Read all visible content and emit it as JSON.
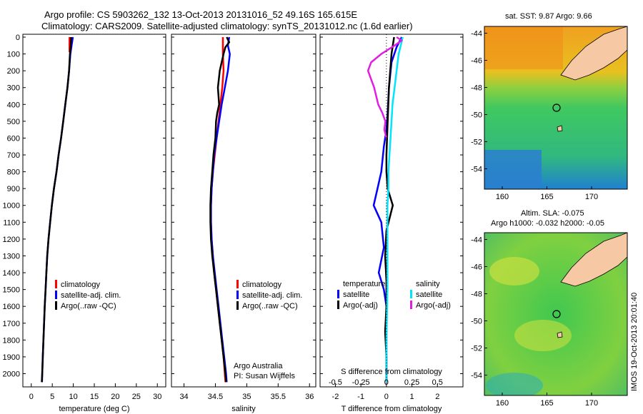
{
  "header": {
    "line1": "Argo profile: CS 5903262_132 13-Oct-2013 20131016_52 49.16S 165.615E",
    "line2": "Climatology: CARS2009. Satellite-adjusted climatology: synTS_20131012.nc (1.6d earlier)"
  },
  "credit": {
    "line1": "Argo Australia",
    "line2": "PI: Susan Wijffels"
  },
  "watermark": "IMOS 19-Oct-2013 20:01:40",
  "colors": {
    "climatology": "#ff0000",
    "satellite": "#0000ff",
    "argo": "#000000",
    "salinity_satellite": "#00e5ff",
    "salinity_argo": "#e020e0",
    "land": "#f6c9a4"
  },
  "chart_data": [
    {
      "type": "line",
      "name": "temperature-profile",
      "xlabel": "temperature (deg C)",
      "ylabel": "",
      "xlim": [
        -2,
        32
      ],
      "ylim": [
        2070,
        0
      ],
      "xticks": [
        0,
        5,
        10,
        15,
        20,
        25,
        30
      ],
      "yticks": [
        0,
        100,
        200,
        300,
        400,
        500,
        600,
        700,
        800,
        900,
        1000,
        1100,
        1200,
        1300,
        1400,
        1500,
        1600,
        1700,
        1800,
        1900,
        2000
      ],
      "legend": [
        "climatology",
        "satellite-adj. clim.",
        "Argo(..raw -QC)"
      ],
      "legend_position": "lower-right",
      "series": [
        {
          "name": "climatology",
          "color": "#ff0000",
          "points": [
            [
              9.1,
              0
            ],
            [
              9.1,
              60
            ],
            [
              9.1,
              90
            ]
          ]
        },
        {
          "name": "satellite-adj. clim.",
          "color": "#0000ff",
          "points": [
            [
              9.9,
              0
            ],
            [
              9.6,
              50
            ],
            [
              9.3,
              100
            ],
            [
              9.0,
              200
            ],
            [
              8.6,
              300
            ],
            [
              8.1,
              400
            ],
            [
              7.6,
              500
            ],
            [
              7.1,
              600
            ],
            [
              6.5,
              700
            ],
            [
              6.0,
              800
            ],
            [
              5.4,
              900
            ],
            [
              4.9,
              1000
            ],
            [
              4.5,
              1100
            ],
            [
              4.1,
              1200
            ],
            [
              3.8,
              1300
            ],
            [
              3.6,
              1400
            ],
            [
              3.4,
              1500
            ],
            [
              3.2,
              1600
            ],
            [
              3.05,
              1700
            ],
            [
              2.9,
              1800
            ],
            [
              2.75,
              1900
            ],
            [
              2.6,
              2000
            ],
            [
              2.55,
              2050
            ]
          ]
        },
        {
          "name": "Argo(..raw -QC)",
          "color": "#000000",
          "points": [
            [
              9.5,
              0
            ],
            [
              9.4,
              50
            ],
            [
              9.2,
              100
            ],
            [
              9.0,
              200
            ],
            [
              8.6,
              300
            ],
            [
              8.1,
              400
            ],
            [
              7.6,
              500
            ],
            [
              7.1,
              600
            ],
            [
              6.5,
              700
            ],
            [
              6.0,
              800
            ],
            [
              5.4,
              900
            ],
            [
              4.9,
              1000
            ],
            [
              4.5,
              1100
            ],
            [
              4.1,
              1200
            ],
            [
              3.8,
              1300
            ],
            [
              3.6,
              1400
            ],
            [
              3.4,
              1500
            ],
            [
              3.2,
              1600
            ],
            [
              3.05,
              1700
            ],
            [
              2.9,
              1800
            ],
            [
              2.75,
              1900
            ],
            [
              2.6,
              2000
            ],
            [
              2.5,
              2050
            ]
          ]
        }
      ]
    },
    {
      "type": "line",
      "name": "salinity-profile",
      "xlabel": "salinity",
      "ylabel": "",
      "xlim": [
        33.8,
        36.1
      ],
      "ylim": [
        2070,
        0
      ],
      "xticks": [
        34,
        34.5,
        35,
        35.5,
        36
      ],
      "legend": [
        "climatology",
        "satellite-adj. clim.",
        "Argo(..raw -QC)"
      ],
      "legend_position": "lower-right",
      "series": [
        {
          "name": "climatology",
          "color": "#ff0000",
          "points": [
            [
              34.62,
              0
            ],
            [
              34.62,
              100
            ],
            [
              34.63,
              200
            ],
            [
              34.61,
              300
            ],
            [
              34.58,
              400
            ],
            [
              34.55,
              500
            ],
            [
              34.52,
              600
            ],
            [
              34.49,
              700
            ],
            [
              34.46,
              800
            ],
            [
              34.44,
              900
            ],
            [
              34.43,
              1000
            ],
            [
              34.43,
              1100
            ],
            [
              34.44,
              1200
            ],
            [
              34.46,
              1300
            ],
            [
              34.48,
              1400
            ],
            [
              34.51,
              1500
            ],
            [
              34.54,
              1600
            ],
            [
              34.57,
              1700
            ],
            [
              34.6,
              1800
            ],
            [
              34.63,
              1900
            ],
            [
              34.65,
              2000
            ],
            [
              34.66,
              2050
            ]
          ]
        },
        {
          "name": "satellite-adj. clim.",
          "color": "#0000ff",
          "points": [
            [
              34.72,
              0
            ],
            [
              34.7,
              50
            ],
            [
              34.73,
              100
            ],
            [
              34.7,
              200
            ],
            [
              34.65,
              300
            ],
            [
              34.6,
              400
            ],
            [
              34.56,
              500
            ],
            [
              34.52,
              600
            ],
            [
              34.48,
              700
            ],
            [
              34.46,
              800
            ],
            [
              34.44,
              900
            ],
            [
              34.43,
              1000
            ],
            [
              34.43,
              1100
            ],
            [
              34.44,
              1200
            ],
            [
              34.46,
              1300
            ],
            [
              34.49,
              1400
            ],
            [
              34.52,
              1500
            ],
            [
              34.55,
              1600
            ],
            [
              34.58,
              1700
            ],
            [
              34.61,
              1800
            ],
            [
              34.64,
              1900
            ],
            [
              34.67,
              2000
            ],
            [
              34.68,
              2050
            ]
          ]
        },
        {
          "name": "Argo(..raw -QC)",
          "color": "#000000",
          "points": [
            [
              34.68,
              0
            ],
            [
              34.72,
              30
            ],
            [
              34.66,
              60
            ],
            [
              34.63,
              100
            ],
            [
              34.57,
              200
            ],
            [
              34.54,
              300
            ],
            [
              34.56,
              400
            ],
            [
              34.53,
              450
            ],
            [
              34.51,
              500
            ],
            [
              34.5,
              600
            ],
            [
              34.47,
              700
            ],
            [
              34.45,
              800
            ],
            [
              34.43,
              900
            ],
            [
              34.42,
              1000
            ],
            [
              34.42,
              1100
            ],
            [
              34.43,
              1200
            ],
            [
              34.45,
              1300
            ],
            [
              34.48,
              1400
            ],
            [
              34.51,
              1500
            ],
            [
              34.54,
              1600
            ],
            [
              34.57,
              1700
            ],
            [
              34.6,
              1800
            ],
            [
              34.63,
              1900
            ],
            [
              34.66,
              2000
            ],
            [
              34.67,
              2050
            ]
          ]
        }
      ]
    },
    {
      "type": "line",
      "name": "difference-profile",
      "xlabel": "T difference from climatology",
      "xlabel_top": "S difference from climatology",
      "xlim": [
        -2.6,
        3.0
      ],
      "ylim": [
        2070,
        0
      ],
      "xticks": [
        -2,
        -1,
        0,
        1,
        2
      ],
      "xticks_s": [
        {
          "value": -0.5,
          "label": "-0.5"
        },
        {
          "value": -0.25,
          "label": "-0.25"
        },
        {
          "value": 0,
          "label": "0"
        },
        {
          "value": 0.25,
          "label": "0.25"
        },
        {
          "value": 0.5,
          "label": "0.5"
        }
      ],
      "s_scale": 4,
      "legend_left_title": "temperature",
      "legend_right_title": "salinity",
      "legend_left": [
        "satellite",
        "Argo(-adj)"
      ],
      "legend_right": [
        "satellite",
        "Argo(-adj)"
      ],
      "series": [
        {
          "name": "temperature satellite",
          "color": "#0000ff",
          "points": [
            [
              0.6,
              0
            ],
            [
              0.4,
              60
            ],
            [
              0.2,
              150
            ],
            [
              0.1,
              300
            ],
            [
              0.05,
              450
            ],
            [
              0.0,
              550
            ],
            [
              -0.1,
              650
            ],
            [
              -0.2,
              800
            ],
            [
              -0.35,
              900
            ],
            [
              -0.5,
              1000
            ],
            [
              -0.2,
              1100
            ],
            [
              -0.1,
              1250
            ],
            [
              -0.3,
              1400
            ],
            [
              -0.1,
              1500
            ],
            [
              0.0,
              1600
            ],
            [
              0.0,
              1750
            ],
            [
              0.0,
              1900
            ],
            [
              0.0,
              2050
            ]
          ]
        },
        {
          "name": "temperature Argo(-adj)",
          "color": "#000000",
          "points": [
            [
              0.3,
              0
            ],
            [
              0.2,
              100
            ],
            [
              0.1,
              300
            ],
            [
              0.05,
              500
            ],
            [
              0.0,
              700
            ],
            [
              0.0,
              800
            ],
            [
              0.05,
              900
            ],
            [
              0.25,
              1000
            ],
            [
              0.0,
              1150
            ],
            [
              -0.05,
              1300
            ],
            [
              0.0,
              1450
            ],
            [
              0.0,
              1600
            ],
            [
              -0.05,
              1750
            ],
            [
              0.0,
              1900
            ],
            [
              0.0,
              2050
            ]
          ]
        },
        {
          "name": "salinity satellite",
          "color": "#00e5ff",
          "points": [
            [
              0.16,
              0
            ],
            [
              0.14,
              50
            ],
            [
              0.12,
              100
            ],
            [
              0.1,
              200
            ],
            [
              0.08,
              300
            ],
            [
              0.06,
              400
            ],
            [
              0.05,
              500
            ],
            [
              0.04,
              600
            ],
            [
              0.03,
              700
            ],
            [
              0.02,
              800
            ],
            [
              0.02,
              900
            ],
            [
              0.01,
              1000
            ],
            [
              0.01,
              1200
            ],
            [
              0.01,
              1500
            ],
            [
              0.0,
              1800
            ],
            [
              0.0,
              2050
            ]
          ]
        },
        {
          "name": "salinity Argo(-adj)",
          "color": "#e020e0",
          "points": [
            [
              0.1,
              0
            ],
            [
              0.15,
              20
            ],
            [
              0.08,
              50
            ],
            [
              -0.05,
              100
            ],
            [
              -0.15,
              150
            ],
            [
              -0.18,
              200
            ],
            [
              -0.15,
              250
            ],
            [
              -0.12,
              300
            ],
            [
              -0.08,
              400
            ],
            [
              -0.04,
              450
            ],
            [
              -0.01,
              500
            ],
            [
              -0.02,
              550
            ],
            [
              0.0,
              600
            ]
          ]
        }
      ]
    },
    {
      "type": "heatmap",
      "name": "sst-map",
      "title": "sat. SST: 9.87 Argo: 9.66",
      "xlim": [
        158,
        174
      ],
      "ylim": [
        -55.5,
        -43.5
      ],
      "xticks": [
        160,
        165,
        170
      ],
      "yticks": [
        -44,
        -46,
        -48,
        -50,
        -52,
        -54
      ],
      "float_position": [
        165.615,
        -49.16
      ]
    },
    {
      "type": "heatmap",
      "name": "sla-map",
      "title_line1": "Altim. SLA: -0.075",
      "title_line2": "Argo h1000: -0.032 h2000: -0.05",
      "xlim": [
        158,
        174
      ],
      "ylim": [
        -55.5,
        -43.5
      ],
      "xticks": [
        160,
        165,
        170
      ],
      "yticks": [
        -44,
        -46,
        -48,
        -50,
        -52,
        -54
      ],
      "float_position": [
        165.615,
        -49.16
      ]
    }
  ]
}
